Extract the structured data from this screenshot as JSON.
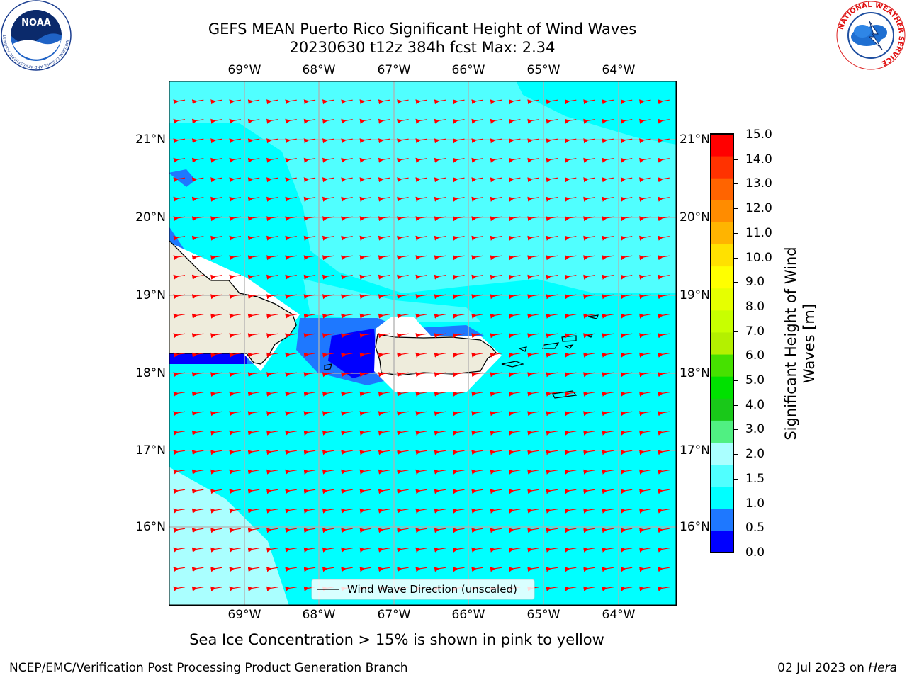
{
  "header": {
    "title_line1": "GEFS MEAN Puerto Rico Significant Height of Wind Waves",
    "title_line2": "20230630 t12z 384h fcst   Max: 2.34"
  },
  "logos": {
    "noaa_text": "NOAA",
    "noaa_ring": "NATIONAL OCEANIC AND ATMOSPHERIC ADMINISTRATION · U.S. DEPARTMENT OF COMMERCE",
    "nws_ring": "NATIONAL WEATHER SERVICE"
  },
  "map": {
    "lon_labels": [
      "69°W",
      "68°W",
      "67°W",
      "66°W",
      "65°W",
      "64°W"
    ],
    "lat_labels": [
      "21°N",
      "20°N",
      "19°N",
      "18°N",
      "17°N",
      "16°N"
    ],
    "legend_label": "Wind Wave Direction (unscaled)",
    "arrow_color": "#ff0000",
    "land_color": "#eeecdc",
    "grid_color": "#b0b0b0"
  },
  "colorbar": {
    "label": "Significant Height of Wind Waves [m]",
    "ticks": [
      "15.0",
      "14.0",
      "13.0",
      "12.0",
      "11.0",
      "10.0",
      "9.0",
      "8.0",
      "7.0",
      "6.0",
      "5.0",
      "4.0",
      "3.0",
      "2.0",
      "1.5",
      "1.0",
      "0.5",
      "0.0"
    ],
    "colors": [
      "#0000ff",
      "#1e78ff",
      "#00ffff",
      "#50ffff",
      "#aaffff",
      "#50f082",
      "#19c819",
      "#00e100",
      "#46e100",
      "#b4f000",
      "#c8ff00",
      "#e6ff00",
      "#ffff00",
      "#ffe100",
      "#ffb400",
      "#ff8c00",
      "#ff6400",
      "#ff3200",
      "#ff0000"
    ]
  },
  "subtitle": "Sea Ice Concentration > 15% is shown in pink to yellow",
  "footer": {
    "left": "NCEP/EMC/Verification Post Processing Product Generation Branch",
    "right_date": "02 Jul 2023 on ",
    "right_host": "Hera"
  }
}
